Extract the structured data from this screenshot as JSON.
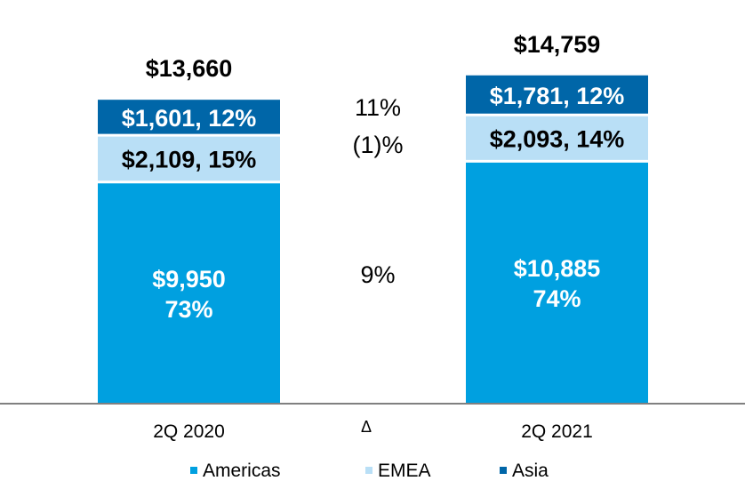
{
  "chart_data": {
    "type": "bar",
    "stacked": true,
    "categories": [
      "2Q 2020",
      "2Q 2021"
    ],
    "totals": [
      "$13,660",
      "$14,759"
    ],
    "total_values": [
      13660,
      14759
    ],
    "series": [
      {
        "name": "Americas",
        "color": "#00a0e0",
        "values": [
          9950,
          10885
        ],
        "labels": [
          [
            "$9,950",
            "73%"
          ],
          [
            "$10,885",
            "74%"
          ]
        ],
        "label_color": "#ffffff",
        "change": "9%"
      },
      {
        "name": "EMEA",
        "color": "#b9dff6",
        "values": [
          2109,
          2093
        ],
        "labels": [
          [
            "$2,109, 15%"
          ],
          [
            "$2,093, 14%"
          ]
        ],
        "label_color": "#000000",
        "change": "(1)%"
      },
      {
        "name": "Asia",
        "color": "#0066a8",
        "values": [
          1601,
          1781
        ],
        "labels": [
          [
            "$1,601, 12%"
          ],
          [
            "$1,781, 12%"
          ]
        ],
        "label_color": "#ffffff",
        "change": "11%"
      }
    ],
    "delta_label": "Δ",
    "ylim": [
      0,
      16000
    ],
    "legend_position": "bottom",
    "axis_color": "#808080",
    "separator_color": "#ffffff"
  }
}
